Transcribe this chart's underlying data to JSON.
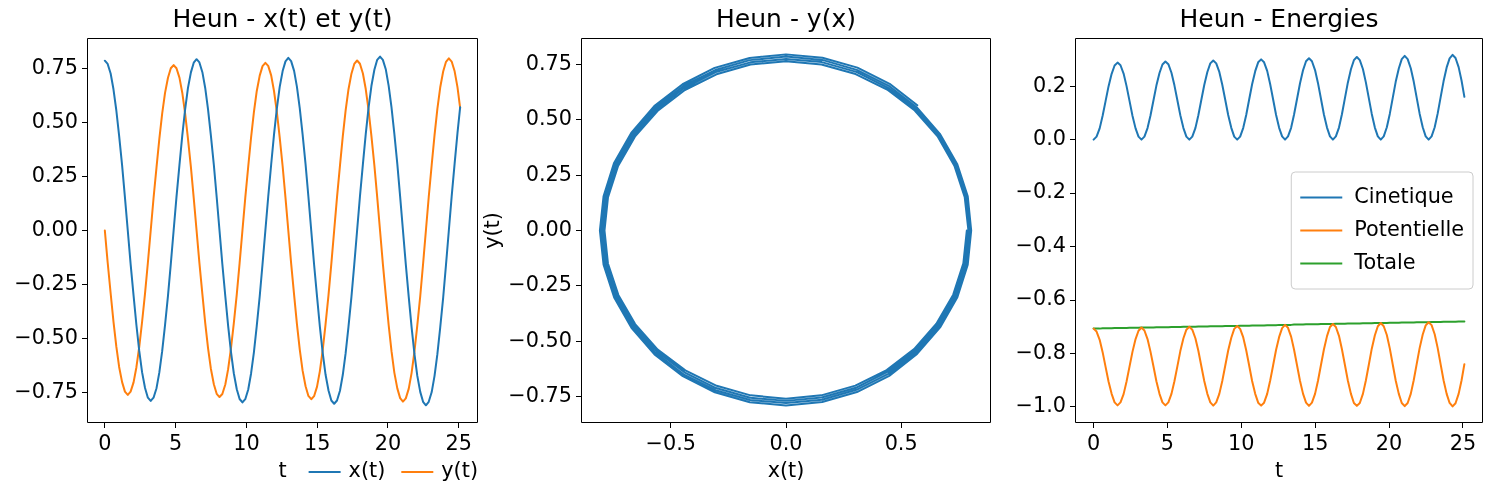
{
  "chart_data": [
    {
      "type": "line",
      "title": "Heun - x(t) et y(t)",
      "xlabel": "t",
      "legend": "bottom right",
      "x": [
        0,
        0.2,
        0.41,
        0.61,
        0.81,
        1.01,
        1.22,
        1.42,
        1.62,
        1.82,
        2.03,
        2.23,
        2.43,
        2.63,
        2.84,
        3.04,
        3.24,
        3.44,
        3.65,
        3.85,
        4.05,
        4.25,
        4.46,
        4.66,
        4.86,
        5.06,
        5.27,
        5.47,
        5.67,
        5.87,
        6.08,
        6.28,
        6.48,
        6.68,
        6.89,
        7.09,
        7.29,
        7.49,
        7.7,
        7.9,
        8.1,
        8.3,
        8.51,
        8.71,
        8.91,
        9.11,
        9.32,
        9.52,
        9.72,
        9.92,
        10.13,
        10.33,
        10.53,
        10.73,
        10.94,
        11.14,
        11.34,
        11.54,
        11.75,
        11.95,
        12.15,
        12.35,
        12.56,
        12.76,
        12.96,
        13.16,
        13.37,
        13.57,
        13.77,
        13.97,
        14.18,
        14.38,
        14.58,
        14.78,
        14.99,
        15.19,
        15.39,
        15.59,
        15.8,
        16.0,
        16.2,
        16.4,
        16.61,
        16.81,
        17.01,
        17.21,
        17.42,
        17.62,
        17.82,
        18.02,
        18.23,
        18.43,
        18.63,
        18.83,
        19.04,
        19.24,
        19.44,
        19.64,
        19.85,
        20.05,
        20.25,
        20.45,
        20.66,
        20.86,
        21.06,
        21.26,
        21.47,
        21.67,
        21.87,
        22.07,
        22.28,
        22.48,
        22.68,
        22.88,
        23.09,
        23.29,
        23.49,
        23.69,
        23.9,
        24.1,
        24.3,
        24.5,
        24.71,
        24.91,
        25.1
      ],
      "series": [
        {
          "name": "x(t)",
          "color": "#1f77b4",
          "values": [
            0.785,
            0.77,
            0.726,
            0.653,
            0.556,
            0.437,
            0.301,
            0.153,
            0,
            -0.154,
            -0.301,
            -0.437,
            -0.557,
            -0.655,
            -0.728,
            -0.773,
            -0.788,
            -0.773,
            -0.729,
            -0.656,
            -0.558,
            -0.439,
            -0.302,
            -0.154,
            0,
            0.154,
            0.302,
            0.439,
            0.559,
            0.658,
            0.731,
            0.776,
            0.792,
            0.777,
            0.732,
            0.659,
            0.56,
            0.44,
            0.303,
            0.155,
            0,
            -0.155,
            -0.304,
            -0.441,
            -0.561,
            -0.66,
            -0.734,
            -0.779,
            -0.795,
            -0.78,
            -0.735,
            -0.661,
            -0.563,
            -0.442,
            -0.305,
            -0.155,
            0,
            0.155,
            0.305,
            0.443,
            0.564,
            0.663,
            0.737,
            0.782,
            0.798,
            0.783,
            0.738,
            0.664,
            0.565,
            0.444,
            0.306,
            0.156,
            0,
            -0.156,
            -0.306,
            -0.445,
            -0.566,
            -0.666,
            -0.74,
            -0.786,
            -0.801,
            -0.786,
            -0.741,
            -0.667,
            -0.567,
            -0.446,
            -0.307,
            -0.157,
            0,
            0.157,
            0.307,
            0.446,
            0.568,
            0.668,
            0.743,
            0.789,
            0.804,
            0.789,
            0.744,
            0.669,
            0.569,
            0.448,
            0.308,
            0.157,
            0,
            -0.157,
            -0.309,
            -0.448,
            -0.571,
            -0.671,
            -0.746,
            -0.792,
            -0.808,
            -0.792,
            -0.747,
            -0.672,
            -0.572,
            -0.449,
            -0.31,
            -0.158,
            0,
            0.158,
            0.31,
            0.45,
            0.57
          ]
        },
        {
          "name": "y(t)",
          "color": "#ff7f0e",
          "values": [
            0,
            -0.148,
            -0.29,
            -0.421,
            -0.536,
            -0.631,
            -0.701,
            -0.745,
            -0.76,
            -0.745,
            -0.702,
            -0.632,
            -0.538,
            -0.423,
            -0.291,
            -0.149,
            0,
            0.149,
            0.292,
            0.424,
            0.54,
            0.635,
            0.706,
            0.75,
            0.765,
            0.75,
            0.707,
            0.637,
            0.542,
            0.426,
            0.293,
            0.15,
            0,
            -0.15,
            -0.294,
            -0.427,
            -0.544,
            -0.639,
            -0.711,
            -0.755,
            -0.77,
            -0.756,
            -0.712,
            -0.641,
            -0.545,
            -0.429,
            -0.295,
            -0.151,
            0,
            0.151,
            0.296,
            0.43,
            0.547,
            0.644,
            0.716,
            0.76,
            0.775,
            0.761,
            0.717,
            0.645,
            0.549,
            0.432,
            0.297,
            0.152,
            0,
            -0.152,
            -0.298,
            -0.433,
            -0.551,
            -0.648,
            -0.72,
            -0.765,
            -0.78,
            -0.766,
            -0.722,
            -0.65,
            -0.553,
            -0.434,
            -0.299,
            -0.153,
            0,
            0.153,
            0.3,
            0.436,
            0.555,
            0.652,
            0.725,
            0.77,
            0.786,
            0.771,
            0.726,
            0.654,
            0.556,
            0.437,
            0.301,
            0.154,
            0,
            -0.154,
            -0.302,
            -0.438,
            -0.558,
            -0.657,
            -0.73,
            -0.775,
            -0.791,
            -0.776,
            -0.731,
            -0.658,
            -0.56,
            -0.44,
            -0.303,
            -0.155,
            0,
            0.155,
            0.304,
            0.441,
            0.562,
            0.661,
            0.735,
            0.78,
            0.796,
            0.781,
            0.736,
            0.663,
            0.566
          ]
        }
      ],
      "xlim": [
        -1.26,
        26.36
      ],
      "xticks": [
        0,
        5,
        10,
        15,
        20,
        25
      ],
      "ylim": [
        -0.89,
        0.89
      ],
      "yticks": [
        {
          "value": -0.75,
          "label": "−0.75"
        },
        {
          "value": -0.5,
          "label": "−0.50"
        },
        {
          "value": -0.25,
          "label": "−0.25"
        },
        {
          "value": 0,
          "label": "0.00"
        },
        0.25,
        {
          "value": 0.5,
          "label": "0.50"
        },
        0.75
      ]
    },
    {
      "type": "line",
      "title": "Heun - y(x)",
      "xlabel": "x(t)",
      "ylabel": "y(t)",
      "x": [
        0.785,
        0.77,
        0.726,
        0.653,
        0.556,
        0.437,
        0.301,
        0.153,
        0,
        -0.154,
        -0.301,
        -0.437,
        -0.557,
        -0.655,
        -0.728,
        -0.773,
        -0.788,
        -0.773,
        -0.729,
        -0.656,
        -0.558,
        -0.439,
        -0.302,
        -0.154,
        0,
        0.154,
        0.302,
        0.439,
        0.559,
        0.658,
        0.731,
        0.776,
        0.792,
        0.777,
        0.732,
        0.659,
        0.56,
        0.44,
        0.303,
        0.155,
        0,
        -0.155,
        -0.304,
        -0.441,
        -0.561,
        -0.66,
        -0.734,
        -0.779,
        -0.795,
        -0.78,
        -0.735,
        -0.661,
        -0.563,
        -0.442,
        -0.305,
        -0.155,
        0,
        0.155,
        0.305,
        0.443,
        0.564,
        0.663,
        0.737,
        0.782,
        0.798,
        0.783,
        0.738,
        0.664,
        0.565,
        0.444,
        0.306,
        0.156,
        0,
        -0.156,
        -0.306,
        -0.445,
        -0.566,
        -0.666,
        -0.74,
        -0.786,
        -0.801,
        -0.786,
        -0.741,
        -0.667,
        -0.567,
        -0.446,
        -0.307,
        -0.157,
        0,
        0.157,
        0.307,
        0.446,
        0.568,
        0.668,
        0.743,
        0.789,
        0.804,
        0.789,
        0.744,
        0.669,
        0.569,
        0.448,
        0.308,
        0.157,
        0,
        -0.157,
        -0.309,
        -0.448,
        -0.571,
        -0.671,
        -0.746,
        -0.792,
        -0.808,
        -0.792,
        -0.747,
        -0.672,
        -0.572,
        -0.449,
        -0.31,
        -0.158,
        0,
        0.158,
        0.31,
        0.45,
        0.57
      ],
      "series": [
        {
          "color": "#1f77b4",
          "values": [
            0,
            -0.148,
            -0.29,
            -0.421,
            -0.536,
            -0.631,
            -0.701,
            -0.745,
            -0.76,
            -0.745,
            -0.702,
            -0.632,
            -0.538,
            -0.423,
            -0.291,
            -0.149,
            0,
            0.149,
            0.292,
            0.424,
            0.54,
            0.635,
            0.706,
            0.75,
            0.765,
            0.75,
            0.707,
            0.637,
            0.542,
            0.426,
            0.293,
            0.15,
            0,
            -0.15,
            -0.294,
            -0.427,
            -0.544,
            -0.639,
            -0.711,
            -0.755,
            -0.77,
            -0.756,
            -0.712,
            -0.641,
            -0.545,
            -0.429,
            -0.295,
            -0.151,
            0,
            0.151,
            0.296,
            0.43,
            0.547,
            0.644,
            0.716,
            0.76,
            0.775,
            0.761,
            0.717,
            0.645,
            0.549,
            0.432,
            0.297,
            0.152,
            0,
            -0.152,
            -0.298,
            -0.433,
            -0.551,
            -0.648,
            -0.72,
            -0.765,
            -0.78,
            -0.766,
            -0.722,
            -0.65,
            -0.553,
            -0.434,
            -0.299,
            -0.153,
            0,
            0.153,
            0.3,
            0.436,
            0.555,
            0.652,
            0.725,
            0.77,
            0.786,
            0.771,
            0.726,
            0.654,
            0.556,
            0.437,
            0.301,
            0.154,
            0,
            -0.154,
            -0.302,
            -0.438,
            -0.558,
            -0.657,
            -0.73,
            -0.775,
            -0.791,
            -0.776,
            -0.731,
            -0.658,
            -0.56,
            -0.44,
            -0.303,
            -0.155,
            0,
            0.155,
            0.304,
            0.441,
            0.562,
            0.661,
            0.735,
            0.78,
            0.796,
            0.781,
            0.736,
            0.663,
            0.566
          ]
        }
      ],
      "xlim": [
        -0.89,
        0.89
      ],
      "xticks": [
        {
          "value": -0.5,
          "label": "−0.5"
        },
        {
          "value": 0,
          "label": "0.0"
        },
        0.5
      ],
      "ylim": [
        -0.87,
        0.87
      ],
      "yticks": [
        {
          "value": -0.75,
          "label": "−0.75"
        },
        {
          "value": -0.5,
          "label": "−0.50"
        },
        {
          "value": -0.25,
          "label": "−0.25"
        },
        {
          "value": 0,
          "label": "0.00"
        },
        0.25,
        {
          "value": 0.5,
          "label": "0.50"
        },
        0.75
      ]
    },
    {
      "type": "line",
      "title": "Heun - Energies",
      "xlabel": "t",
      "legend": "right",
      "x": [
        0,
        0.2,
        0.41,
        0.61,
        0.81,
        1.01,
        1.22,
        1.42,
        1.62,
        1.82,
        2.03,
        2.23,
        2.43,
        2.63,
        2.84,
        3.04,
        3.24,
        3.44,
        3.65,
        3.85,
        4.05,
        4.25,
        4.46,
        4.66,
        4.86,
        5.06,
        5.27,
        5.47,
        5.67,
        5.87,
        6.08,
        6.28,
        6.48,
        6.68,
        6.89,
        7.09,
        7.29,
        7.49,
        7.7,
        7.9,
        8.1,
        8.3,
        8.51,
        8.71,
        8.91,
        9.11,
        9.32,
        9.52,
        9.72,
        9.92,
        10.13,
        10.33,
        10.53,
        10.73,
        10.94,
        11.14,
        11.34,
        11.54,
        11.75,
        11.95,
        12.15,
        12.35,
        12.56,
        12.76,
        12.96,
        13.16,
        13.37,
        13.57,
        13.77,
        13.97,
        14.18,
        14.38,
        14.58,
        14.78,
        14.99,
        15.19,
        15.39,
        15.59,
        15.8,
        16.0,
        16.2,
        16.4,
        16.61,
        16.81,
        17.01,
        17.21,
        17.42,
        17.62,
        17.82,
        18.02,
        18.23,
        18.43,
        18.63,
        18.83,
        19.04,
        19.24,
        19.44,
        19.64,
        19.85,
        20.05,
        20.25,
        20.45,
        20.66,
        20.86,
        21.06,
        21.26,
        21.47,
        21.67,
        21.87,
        22.07,
        22.28,
        22.48,
        22.68,
        22.88,
        23.09,
        23.29,
        23.49,
        23.69,
        23.9,
        24.1,
        24.3,
        24.5,
        24.71,
        24.91,
        25.1
      ],
      "series": [
        {
          "name": "Cinetique",
          "color": "#1f77b4",
          "values": [
            0,
            0.011,
            0.042,
            0.089,
            0.144,
            0.199,
            0.246,
            0.277,
            0.288,
            0.278,
            0.247,
            0.2,
            0.145,
            0.089,
            0.042,
            0.011,
            0,
            0.011,
            0.043,
            0.09,
            0.146,
            0.202,
            0.249,
            0.281,
            0.292,
            0.282,
            0.25,
            0.203,
            0.147,
            0.091,
            0.043,
            0.011,
            0,
            0.011,
            0.043,
            0.091,
            0.148,
            0.204,
            0.253,
            0.285,
            0.296,
            0.285,
            0.253,
            0.205,
            0.149,
            0.092,
            0.044,
            0.011,
            0,
            0.011,
            0.044,
            0.092,
            0.15,
            0.207,
            0.256,
            0.289,
            0.3,
            0.289,
            0.257,
            0.208,
            0.151,
            0.093,
            0.044,
            0.012,
            0,
            0.012,
            0.044,
            0.094,
            0.152,
            0.21,
            0.26,
            0.293,
            0.304,
            0.293,
            0.26,
            0.211,
            0.153,
            0.094,
            0.045,
            0.012,
            0,
            0.012,
            0.045,
            0.095,
            0.154,
            0.213,
            0.263,
            0.297,
            0.309,
            0.297,
            0.264,
            0.214,
            0.155,
            0.096,
            0.045,
            0.012,
            0,
            0.012,
            0.046,
            0.096,
            0.156,
            0.216,
            0.266,
            0.301,
            0.313,
            0.301,
            0.267,
            0.217,
            0.157,
            0.097,
            0.046,
            0.012,
            0,
            0.012,
            0.046,
            0.097,
            0.158,
            0.218,
            0.27,
            0.304,
            0.317,
            0.305,
            0.271,
            0.22,
            0.16
          ]
        },
        {
          "name": "Potentielle",
          "color": "#ff7f0e",
          "values": [
            -0.707,
            -0.718,
            -0.749,
            -0.795,
            -0.85,
            -0.905,
            -0.951,
            -0.983,
            -0.994,
            -0.983,
            -0.952,
            -0.905,
            -0.849,
            -0.794,
            -0.746,
            -0.715,
            -0.703,
            -0.714,
            -0.746,
            -0.793,
            -0.848,
            -0.904,
            -0.951,
            -0.983,
            -0.994,
            -0.983,
            -0.951,
            -0.904,
            -0.848,
            -0.791,
            -0.743,
            -0.711,
            -0.7,
            -0.711,
            -0.743,
            -0.79,
            -0.847,
            -0.903,
            -0.951,
            -0.983,
            -0.995,
            -0.983,
            -0.951,
            -0.903,
            -0.846,
            -0.789,
            -0.741,
            -0.708,
            -0.697,
            -0.708,
            -0.74,
            -0.788,
            -0.845,
            -0.903,
            -0.951,
            -0.984,
            -0.995,
            -0.984,
            -0.951,
            -0.902,
            -0.845,
            -0.787,
            -0.738,
            -0.705,
            -0.693,
            -0.704,
            -0.737,
            -0.786,
            -0.844,
            -0.902,
            -0.951,
            -0.984,
            -0.996,
            -0.984,
            -0.951,
            -0.902,
            -0.843,
            -0.785,
            -0.735,
            -0.701,
            -0.69,
            -0.701,
            -0.734,
            -0.784,
            -0.842,
            -0.901,
            -0.951,
            -0.985,
            -0.996,
            -0.985,
            -0.951,
            -0.901,
            -0.842,
            -0.782,
            -0.732,
            -0.698,
            -0.686,
            -0.698,
            -0.731,
            -0.781,
            -0.841,
            -0.901,
            -0.951,
            -0.985,
            -0.997,
            -0.985,
            -0.951,
            -0.9,
            -0.84,
            -0.78,
            -0.729,
            -0.695,
            -0.683,
            -0.694,
            -0.728,
            -0.779,
            -0.84,
            -0.9,
            -0.951,
            -0.985,
            -0.998,
            -0.986,
            -0.951,
            -0.9,
            -0.84
          ]
        },
        {
          "name": "Totale",
          "color": "#2ca02c",
          "values": [
            -0.707,
            -0.707,
            -0.707,
            -0.706,
            -0.706,
            -0.706,
            -0.706,
            -0.705,
            -0.705,
            -0.705,
            -0.705,
            -0.705,
            -0.704,
            -0.704,
            -0.704,
            -0.704,
            -0.703,
            -0.703,
            -0.703,
            -0.703,
            -0.703,
            -0.702,
            -0.702,
            -0.702,
            -0.702,
            -0.702,
            -0.701,
            -0.701,
            -0.701,
            -0.701,
            -0.7,
            -0.7,
            -0.7,
            -0.7,
            -0.7,
            -0.699,
            -0.699,
            -0.699,
            -0.699,
            -0.698,
            -0.698,
            -0.698,
            -0.698,
            -0.698,
            -0.697,
            -0.697,
            -0.697,
            -0.697,
            -0.697,
            -0.696,
            -0.696,
            -0.696,
            -0.696,
            -0.695,
            -0.695,
            -0.695,
            -0.695,
            -0.695,
            -0.694,
            -0.694,
            -0.694,
            -0.694,
            -0.693,
            -0.693,
            -0.693,
            -0.693,
            -0.693,
            -0.692,
            -0.692,
            -0.692,
            -0.692,
            -0.691,
            -0.691,
            -0.691,
            -0.691,
            -0.691,
            -0.69,
            -0.69,
            -0.69,
            -0.69,
            -0.69,
            -0.689,
            -0.689,
            -0.689,
            -0.689,
            -0.688,
            -0.688,
            -0.688,
            -0.688,
            -0.688,
            -0.687,
            -0.687,
            -0.687,
            -0.687,
            -0.686,
            -0.686,
            -0.686,
            -0.686,
            -0.686,
            -0.685,
            -0.685,
            -0.685,
            -0.685,
            -0.684,
            -0.684,
            -0.684,
            -0.684,
            -0.684,
            -0.683,
            -0.683,
            -0.683,
            -0.683,
            -0.683,
            -0.682,
            -0.682,
            -0.682,
            -0.682,
            -0.681,
            -0.681,
            -0.681,
            -0.681,
            -0.681,
            -0.68,
            -0.68,
            -0.68
          ]
        }
      ],
      "xlim": [
        -1.26,
        26.36
      ],
      "xticks": [
        0,
        5,
        10,
        15,
        20,
        25
      ],
      "ylim": [
        -1.06,
        0.38
      ],
      "yticks": [
        {
          "value": -1,
          "label": "−1.0"
        },
        {
          "value": -0.8,
          "label": "−0.8"
        },
        {
          "value": -0.6,
          "label": "−0.6"
        },
        {
          "value": -0.4,
          "label": "−0.4"
        },
        {
          "value": -0.2,
          "label": "−0.2"
        },
        {
          "value": 0,
          "label": "0.0"
        },
        0.2
      ]
    }
  ]
}
